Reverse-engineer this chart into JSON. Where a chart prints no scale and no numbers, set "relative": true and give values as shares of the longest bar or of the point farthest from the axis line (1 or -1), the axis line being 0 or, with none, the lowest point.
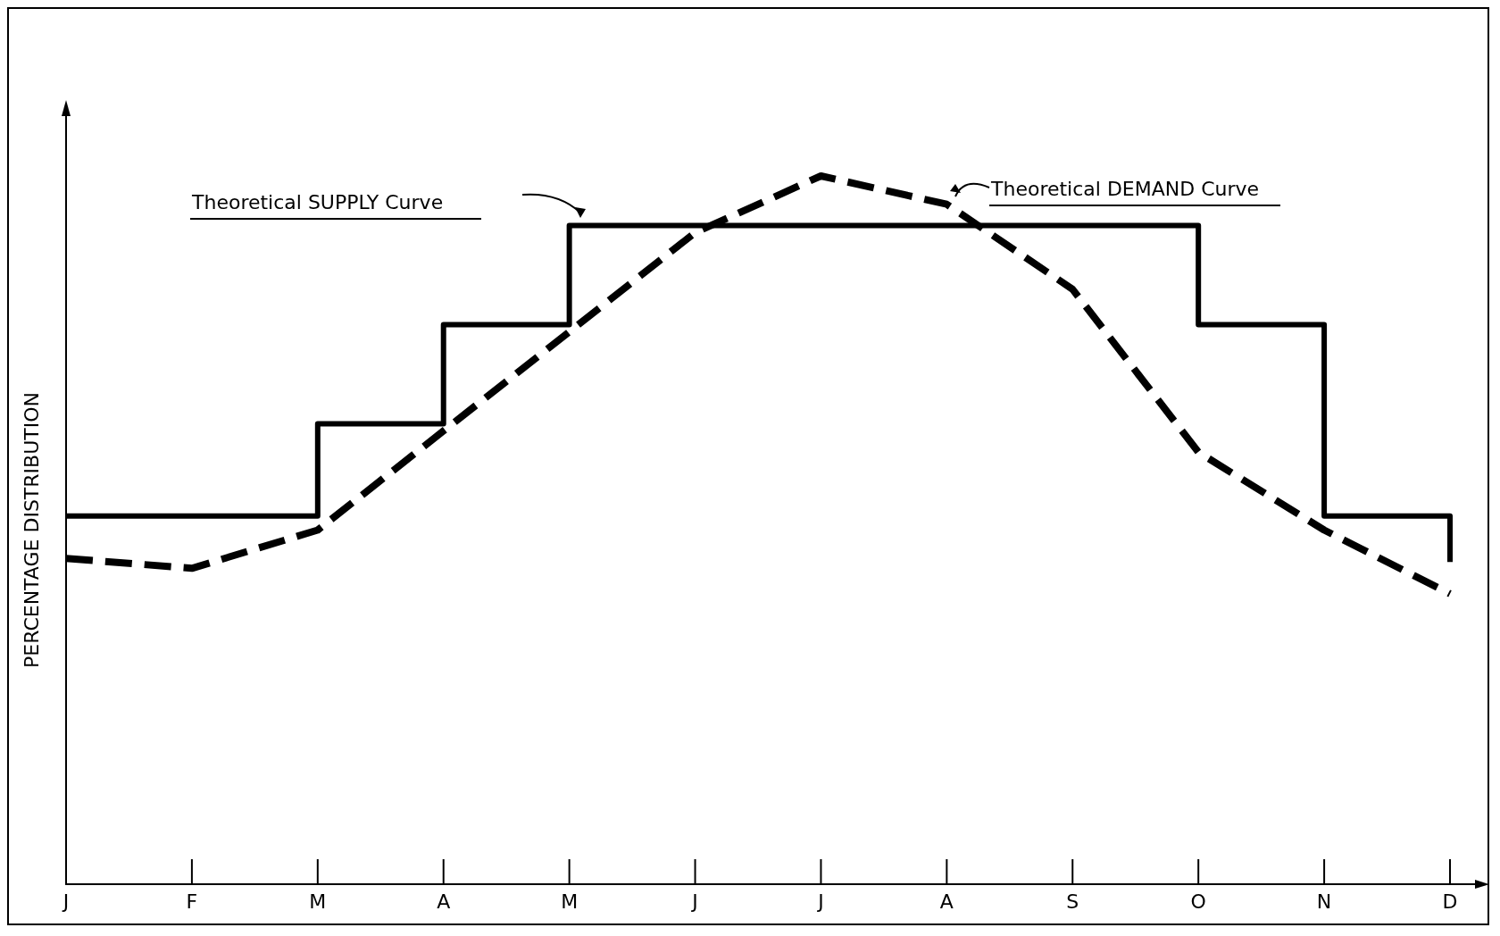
{
  "chart_data": {
    "type": "line",
    "relative": true,
    "ylabel": "PERCENTAGE DISTRIBUTION",
    "categories": [
      "J",
      "F",
      "M",
      "A",
      "M",
      "J",
      "J",
      "A",
      "S",
      "O",
      "N",
      "D"
    ],
    "annotations": [
      "Theoretical SUPPLY Curve",
      "Theoretical DEMAND Curve"
    ],
    "series": [
      {
        "type": "step",
        "color": "#000000",
        "line_style": "solid",
        "values": [
          0.52,
          0.52,
          0.65,
          0.79,
          0.93,
          0.93,
          0.93,
          0.93,
          0.93,
          0.79,
          0.52,
          0.455
        ]
      },
      {
        "type": "line",
        "color": "#000000",
        "line_style": "dashed",
        "values": [
          0.46,
          0.446,
          0.5,
          0.64,
          0.78,
          0.92,
          1.0,
          0.96,
          0.84,
          0.61,
          0.5,
          0.41
        ]
      }
    ],
    "grid": false,
    "marker": "none"
  }
}
